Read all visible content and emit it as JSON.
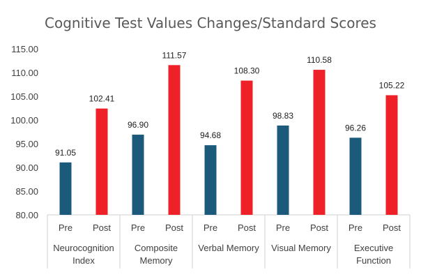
{
  "chart_data": {
    "type": "bar",
    "title": "Cognitive Test Values Changes/Standard Scores",
    "ylim": [
      80,
      115
    ],
    "yticks": [
      "80.00",
      "85.00",
      "90.00",
      "95.00",
      "100.00",
      "105.00",
      "110.00",
      "115.00"
    ],
    "grid": false,
    "legend": "none",
    "groups": [
      {
        "label": [
          "Neurocognition",
          "Index"
        ],
        "categories": [
          "Pre",
          "Post"
        ],
        "values": [
          91.05,
          102.41
        ],
        "labels": [
          "91.05",
          "102.41"
        ]
      },
      {
        "label": [
          "Composite",
          "Memory"
        ],
        "categories": [
          "Pre",
          "Post"
        ],
        "values": [
          96.9,
          111.57
        ],
        "labels": [
          "96.90",
          "111.57"
        ]
      },
      {
        "label": [
          "Verbal Memory"
        ],
        "categories": [
          "Pre",
          "Post"
        ],
        "values": [
          94.68,
          108.3
        ],
        "labels": [
          "94.68",
          "108.30"
        ]
      },
      {
        "label": [
          "Visual Memory"
        ],
        "categories": [
          "Pre",
          "Post"
        ],
        "values": [
          98.83,
          110.58
        ],
        "labels": [
          "98.83",
          "110.58"
        ]
      },
      {
        "label": [
          "Executive",
          "Function"
        ],
        "categories": [
          "Pre",
          "Post"
        ],
        "values": [
          96.26,
          105.22
        ],
        "labels": [
          "96.26",
          "105.22"
        ]
      }
    ],
    "colors": {
      "Pre": "#1b5a7b",
      "Post": "#ee2128"
    }
  }
}
